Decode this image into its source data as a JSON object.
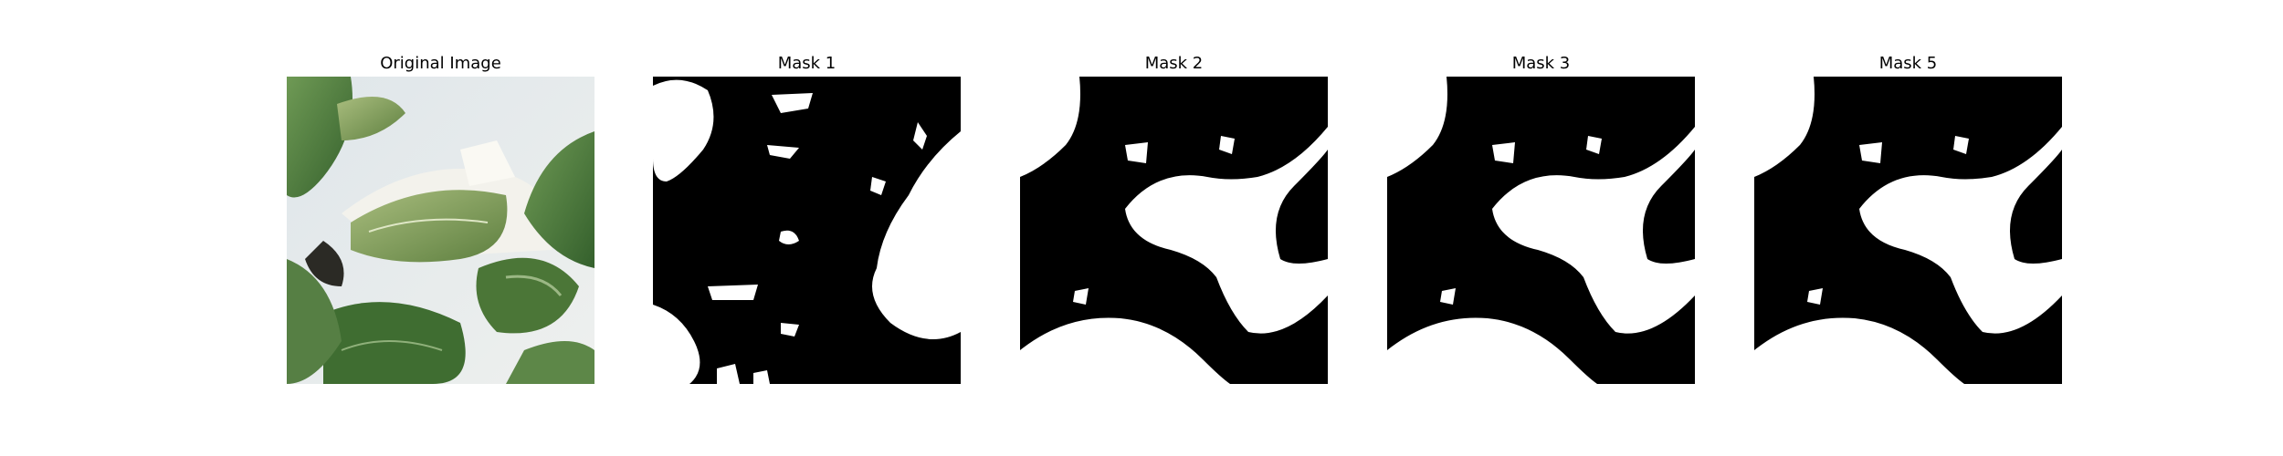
{
  "panels": [
    {
      "title": "Original Image"
    },
    {
      "title": "Mask 1"
    },
    {
      "title": "Mask 2"
    },
    {
      "title": "Mask 3"
    },
    {
      "title": "Mask 5"
    }
  ],
  "colors": {
    "background": "#ffffff",
    "mask_foreground": "#ffffff",
    "mask_background": "#000000"
  }
}
